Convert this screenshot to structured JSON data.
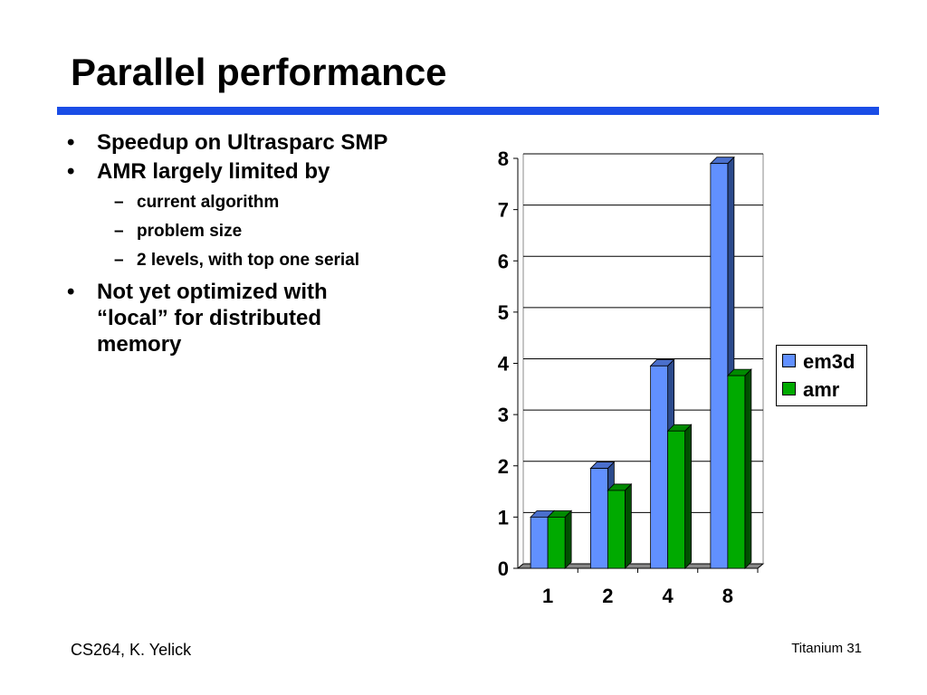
{
  "slide": {
    "title": "Parallel performance",
    "bullets": [
      {
        "level": 1,
        "text": "Speedup on Ultrasparc SMP"
      },
      {
        "level": 1,
        "text": "AMR largely limited by"
      },
      {
        "level": 2,
        "text": "current algorithm"
      },
      {
        "level": 2,
        "text": "problem size"
      },
      {
        "level": 2,
        "text": "2 levels, with top one serial"
      },
      {
        "level": 1,
        "text": "Not yet optimized with “local” for distributed memory"
      }
    ],
    "footer_left": "CS264, K. Yelick",
    "footer_right": "Titanium 31",
    "rule_color": "#1a4de6"
  },
  "chart_data": {
    "type": "bar",
    "style": "3d-clustered",
    "categories": [
      "1",
      "2",
      "4",
      "8"
    ],
    "series": [
      {
        "name": "em3d",
        "values": [
          1.0,
          1.95,
          3.95,
          7.9
        ],
        "color": "#6190ff"
      },
      {
        "name": "amr",
        "values": [
          1.0,
          1.52,
          2.68,
          3.76
        ],
        "color": "#00aa00"
      }
    ],
    "ylim": [
      0,
      8
    ],
    "yticks": [
      "0",
      "1",
      "2",
      "3",
      "4",
      "5",
      "6",
      "7",
      "8"
    ],
    "grid": true,
    "legend": "right"
  }
}
